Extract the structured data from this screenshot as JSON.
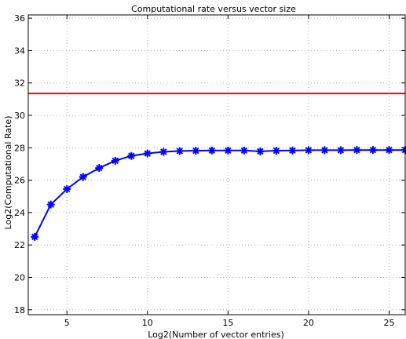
{
  "chart_data": {
    "type": "line",
    "title": "Computational rate versus vector size",
    "xlabel": "Log2(Number of vector entries)",
    "ylabel": "Log2(Computational Rate)",
    "xlim": [
      2.6,
      26
    ],
    "ylim": [
      17.7,
      36.2
    ],
    "xticks": [
      5,
      10,
      15,
      20,
      25
    ],
    "yticks": [
      18,
      20,
      22,
      24,
      26,
      28,
      30,
      32,
      34,
      36
    ],
    "grid": true,
    "series": [
      {
        "color": "#0000ff",
        "marker": "asterisk",
        "x": [
          3,
          4,
          5,
          6,
          7,
          8,
          9,
          10,
          11,
          12,
          13,
          14,
          15,
          16,
          17,
          18,
          19,
          20,
          21,
          22,
          23,
          24,
          25,
          26
        ],
        "y": [
          22.5,
          24.5,
          25.45,
          26.2,
          26.75,
          27.2,
          27.5,
          27.65,
          27.75,
          27.8,
          27.82,
          27.83,
          27.83,
          27.83,
          27.78,
          27.82,
          27.83,
          27.85,
          27.85,
          27.85,
          27.86,
          27.86,
          27.86,
          27.86
        ]
      },
      {
        "color": "#ff0000",
        "marker": "none",
        "x": [
          2.6,
          26
        ],
        "y": [
          31.35,
          31.35
        ]
      }
    ]
  }
}
